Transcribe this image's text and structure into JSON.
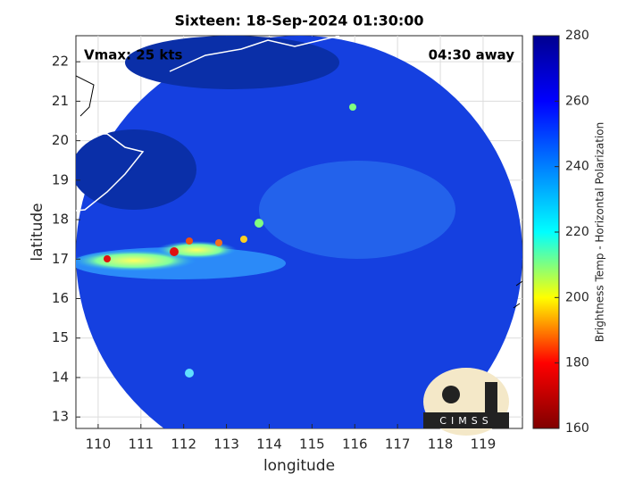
{
  "chart_data": {
    "type": "map",
    "title": "Sixteen: 18-Sep-2024 01:30:00",
    "annotations": [
      "Vmax: 25 kts",
      "04:30 away"
    ],
    "xlabel": "longitude",
    "ylabel": "latitude",
    "xlim": [
      109.48,
      119.92
    ],
    "xticks": [
      110,
      111,
      112,
      113,
      114,
      115,
      116,
      117,
      118,
      119
    ],
    "ylim": [
      12.71,
      22.66
    ],
    "yticks": [
      13,
      14,
      15,
      16,
      17,
      18,
      19,
      20,
      21,
      22
    ],
    "grid": true,
    "colorbar": {
      "label": "Brightness Temp - Horizontal Polarization",
      "lim": [
        160,
        280
      ],
      "ticks": [
        160,
        180,
        200,
        220,
        240,
        260,
        280
      ],
      "colors": [
        "#800000",
        "#ff0000",
        "#ffff00",
        "#00ffff",
        "#0080ff",
        "#0000ff",
        "#00008f"
      ]
    },
    "logo": "CIMSS"
  }
}
